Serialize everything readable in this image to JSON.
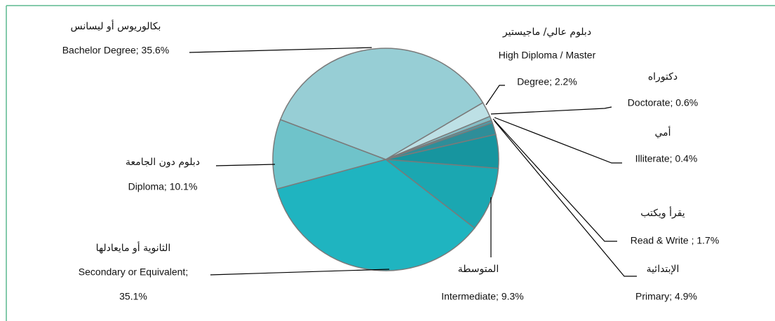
{
  "chart_data": {
    "type": "pie",
    "categories": [
      "دبلوم عالي/ ماجيستير",
      "دكتوراه",
      "أمي",
      "يقرأ ويكتب",
      "الإبتدائية",
      "المتوسطة",
      "الثانوية أو مايعادلها",
      "دبلوم دون الجامعة",
      "بكالوريوس أو ليسانس"
    ],
    "values": [
      2.2,
      0.6,
      0.4,
      1.7,
      4.9,
      9.3,
      35.1,
      10.1,
      35.6
    ],
    "value_labels": [
      [
        "High Diploma / Master",
        "Degree; 2.2%"
      ],
      [
        "Doctorate; 0.6%"
      ],
      [
        "Illiterate; 0.4%"
      ],
      [
        "Read & Write ; 1.7%"
      ],
      [
        "Primary; 4.9%"
      ],
      [
        "Intermediate; 9.3%"
      ],
      [
        "Secondary or Equivalent;",
        "35.1%"
      ],
      [
        "Diploma; 10.1%"
      ],
      [
        "Bachelor Degree; 35.6%"
      ]
    ],
    "colors": [
      "#bde0e5",
      "#86bec6",
      "#4f9ba6",
      "#2e8e99",
      "#17959f",
      "#1ba7b1",
      "#1fb4c0",
      "#6fc3ca",
      "#97ced5"
    ]
  }
}
